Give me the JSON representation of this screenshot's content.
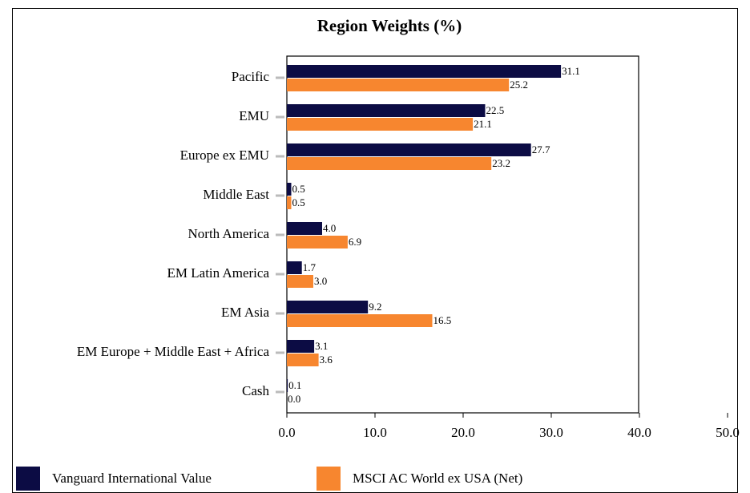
{
  "chart_data": {
    "type": "hbar",
    "title": "Region Weights (%)",
    "categories": [
      "Pacific",
      "EMU",
      "Europe ex EMU",
      "Middle East",
      "North America",
      "EM Latin America",
      "EM Asia",
      "EM Europe + Middle East + Africa",
      "Cash"
    ],
    "series": [
      {
        "name": "Vanguard International Value",
        "color": "#0c0c44",
        "values": [
          31.1,
          22.5,
          27.7,
          0.5,
          4.0,
          1.7,
          9.2,
          3.1,
          0.1
        ],
        "value_labels": [
          "31.1",
          "22.5",
          "27.7",
          "0.5",
          "4.0",
          "1.7",
          "9.2",
          "3.1",
          "0.1"
        ]
      },
      {
        "name": "MSCI AC World ex USA (Net)",
        "color": "#f7862f",
        "values": [
          25.2,
          21.1,
          23.2,
          0.5,
          6.9,
          3.0,
          16.5,
          3.6,
          0.0
        ],
        "value_labels": [
          "25.2",
          "21.1",
          "23.2",
          "0.5",
          "6.9",
          "3.0",
          "16.5",
          "3.6",
          "0.0"
        ]
      }
    ],
    "xlim": [
      0,
      50
    ],
    "xticks": [
      {
        "value": 0,
        "label": "0.0"
      },
      {
        "value": 10,
        "label": "10.0"
      },
      {
        "value": 20,
        "label": "20.0"
      },
      {
        "value": 30,
        "label": "30.0"
      },
      {
        "value": 40,
        "label": "40.0"
      },
      {
        "value": 50,
        "label": "50.0"
      }
    ]
  }
}
